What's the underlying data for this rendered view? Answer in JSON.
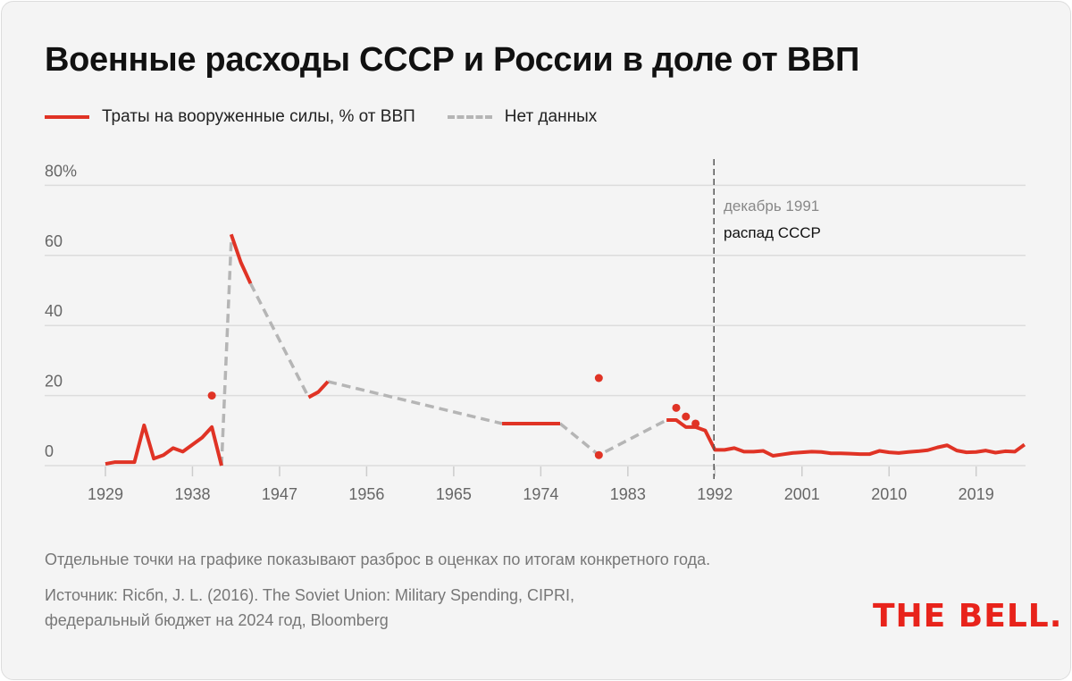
{
  "title": "Военные расходы СССР и России в доле от ВВП",
  "legend": {
    "series": "Траты на вооруженные силы, % от ВВП",
    "gap": "Нет данных"
  },
  "annotation": {
    "date": "декабрь 1991",
    "event": "распад СССР"
  },
  "footer": {
    "note": "Отдельные точки на графике показывают разброс в оценках по итогам конкретного года.",
    "source_line1": "Источник: Ricбn, J. L. (2016). The Soviet Union: Military Spending, CIPRI,",
    "source_line2": "федеральный бюджет на 2024 год, Bloomberg"
  },
  "logo": "THE BELL.",
  "colors": {
    "series": "#e03325",
    "gap": "#b5b5b5"
  },
  "chart_data": {
    "type": "line",
    "title": "Военные расходы СССР и России в доле от ВВП",
    "xlabel": "",
    "ylabel": "% от ВВП",
    "xlim": [
      1926,
      2025
    ],
    "ylim": [
      0,
      80
    ],
    "x_ticks": [
      1929,
      1938,
      1947,
      1956,
      1965,
      1974,
      1983,
      1992,
      2001,
      2010,
      2019
    ],
    "y_ticks": [
      {
        "v": 0,
        "label": "0"
      },
      {
        "v": 20,
        "label": "20"
      },
      {
        "v": 40,
        "label": "40"
      },
      {
        "v": 60,
        "label": "60"
      },
      {
        "v": 80,
        "label": "80%"
      }
    ],
    "grid": true,
    "segments": [
      {
        "x": [
          1929,
          1930,
          1931,
          1932,
          1933,
          1934,
          1935,
          1936,
          1937,
          1938,
          1939,
          1940,
          1941
        ],
        "y": [
          0.5,
          1,
          1,
          1,
          11.5,
          2,
          3,
          5,
          4,
          6,
          8,
          11,
          0
        ]
      },
      {
        "x": [
          1942,
          1943,
          1944
        ],
        "y": [
          66,
          58,
          52
        ]
      },
      {
        "x": [
          1950,
          1951,
          1952
        ],
        "y": [
          19.5,
          21,
          24
        ]
      },
      {
        "x": [
          1970,
          1976
        ],
        "y": [
          12,
          12
        ]
      },
      {
        "x": [
          1987,
          1988,
          1989,
          1990,
          1991,
          1992,
          1993,
          1994,
          1995,
          1996,
          1997,
          1998,
          1999,
          2000,
          2001,
          2002,
          2003,
          2004,
          2005,
          2006,
          2007,
          2008,
          2009,
          2010,
          2011,
          2012,
          2013,
          2014,
          2015,
          2016,
          2017,
          2018,
          2019,
          2020,
          2021,
          2022,
          2023,
          2024
        ],
        "y": [
          13,
          13,
          11,
          11,
          10,
          4.5,
          4.5,
          5,
          4,
          4,
          4.2,
          2.8,
          3.2,
          3.6,
          3.8,
          4,
          3.9,
          3.5,
          3.5,
          3.4,
          3.3,
          3.3,
          4.2,
          3.8,
          3.6,
          3.9,
          4.1,
          4.4,
          5.2,
          5.8,
          4.3,
          3.8,
          3.9,
          4.3,
          3.7,
          4.1,
          4,
          6
        ]
      }
    ],
    "gaps": [
      {
        "x": [
          1941,
          1942
        ],
        "y": [
          0,
          64
        ]
      },
      {
        "x": [
          1944,
          1950
        ],
        "y": [
          52,
          19.5
        ]
      },
      {
        "x": [
          1952,
          1970
        ],
        "y": [
          24,
          12
        ]
      },
      {
        "x": [
          1976,
          1980,
          1987
        ],
        "y": [
          12,
          3,
          13
        ]
      }
    ],
    "points": [
      {
        "x": 1940,
        "y": 20
      },
      {
        "x": 1980,
        "y": 3
      },
      {
        "x": 1980,
        "y": 25
      },
      {
        "x": 1988,
        "y": 16.5
      },
      {
        "x": 1989,
        "y": 14
      },
      {
        "x": 1990,
        "y": 12
      }
    ],
    "event_line": {
      "x": 1991.9
    }
  }
}
